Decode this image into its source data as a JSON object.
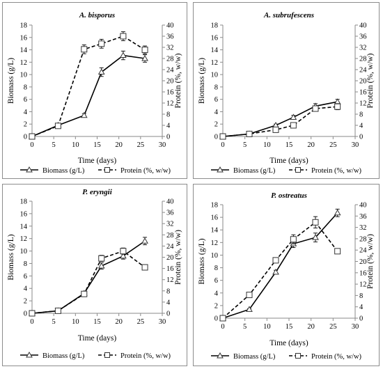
{
  "chart_data": [
    {
      "type": "line",
      "title": "A. bisporus",
      "xlabel": "Time (days)",
      "ylabel": "Biomass (g/L)",
      "y2label": "Protein (%, w/w)",
      "xlim": [
        0,
        30
      ],
      "xticks": [
        0,
        5,
        10,
        15,
        20,
        25,
        30
      ],
      "ylim": [
        0,
        18
      ],
      "yticks": [
        0,
        2,
        4,
        6,
        8,
        10,
        12,
        14,
        16,
        18
      ],
      "y2lim": [
        0,
        40
      ],
      "y2ticks": [
        0,
        4,
        8,
        12,
        16,
        20,
        24,
        28,
        32,
        36,
        40
      ],
      "grid": false,
      "legend_position": "bottom",
      "series": [
        {
          "name": "Biomass (g/L)",
          "axis": "left",
          "style": "solid",
          "marker": "triangle",
          "x": [
            0,
            6,
            12,
            16,
            21,
            26
          ],
          "y": [
            0,
            1.8,
            3.4,
            10.4,
            13.1,
            12.6
          ],
          "err": [
            0.1,
            0.2,
            0.3,
            0.7,
            0.7,
            0.6
          ]
        },
        {
          "name": "Protein (%,  w/w)",
          "axis": "right",
          "style": "dashed",
          "marker": "square",
          "x": [
            0,
            6,
            12,
            16,
            21,
            26
          ],
          "y": [
            0,
            3.8,
            31.3,
            33.3,
            36.0,
            31.1
          ],
          "err": [
            0.2,
            0.4,
            1.6,
            1.6,
            1.6,
            1.4
          ]
        }
      ]
    },
    {
      "type": "line",
      "title": "A. subrufescens",
      "xlabel": "Time (days)",
      "ylabel": "Biomass (g/L)",
      "y2label": "Protein (%, w/w)",
      "xlim": [
        0,
        30
      ],
      "xticks": [
        0,
        5,
        10,
        15,
        20,
        25,
        30
      ],
      "ylim": [
        0,
        18
      ],
      "yticks": [
        0,
        2,
        4,
        6,
        8,
        10,
        12,
        14,
        16,
        18
      ],
      "y2lim": [
        0,
        40
      ],
      "y2ticks": [
        0,
        4,
        8,
        12,
        16,
        20,
        24,
        28,
        32,
        36,
        40
      ],
      "grid": false,
      "legend_position": "bottom",
      "series": [
        {
          "name": "Biomass (g/L)",
          "axis": "left",
          "style": "solid",
          "marker": "triangle",
          "x": [
            0,
            6,
            12,
            16,
            21,
            26
          ],
          "y": [
            0,
            0.4,
            1.8,
            3.1,
            4.9,
            5.6
          ],
          "err": [
            0.1,
            0.1,
            0.2,
            0.3,
            0.4,
            0.4
          ]
        },
        {
          "name": "Protein (%,  w/w)",
          "axis": "right",
          "style": "dashed",
          "marker": "square",
          "x": [
            0,
            6,
            12,
            16,
            21,
            26
          ],
          "y": [
            0,
            0.9,
            2.4,
            4.0,
            10.0,
            10.7
          ],
          "err": [
            0.2,
            0.3,
            0.4,
            0.5,
            0.9,
            1.1
          ]
        }
      ]
    },
    {
      "type": "line",
      "title": "P. eryngii",
      "xlabel": "Time (days)",
      "ylabel": "Biomass (g/L)",
      "y2label": "Protein (%, w/w)",
      "xlim": [
        0,
        30
      ],
      "xticks": [
        0,
        5,
        10,
        15,
        20,
        25,
        30
      ],
      "ylim": [
        0,
        18
      ],
      "yticks": [
        0,
        2,
        4,
        6,
        8,
        10,
        12,
        14,
        16,
        18
      ],
      "y2lim": [
        0,
        40
      ],
      "y2ticks": [
        0,
        4,
        8,
        12,
        16,
        20,
        24,
        28,
        32,
        36,
        40
      ],
      "grid": false,
      "legend_position": "bottom",
      "series": [
        {
          "name": "Biomass (g/L)",
          "axis": "left",
          "style": "solid",
          "marker": "triangle",
          "x": [
            0,
            6,
            12,
            16,
            21,
            26
          ],
          "y": [
            0,
            0.4,
            3.2,
            7.6,
            9.2,
            11.6
          ],
          "err": [
            0.1,
            0.1,
            0.2,
            0.5,
            0.5,
            0.6
          ]
        },
        {
          "name": "Protein (%,  w/w)",
          "axis": "right",
          "style": "dashed",
          "marker": "square",
          "x": [
            0,
            6,
            12,
            16,
            21,
            26
          ],
          "y": [
            0,
            0.9,
            6.9,
            19.6,
            22.2,
            16.4
          ],
          "err": [
            0.2,
            0.2,
            0.4,
            1.1,
            1.1,
            0.5
          ]
        }
      ]
    },
    {
      "type": "line",
      "title": "P. ostreatus",
      "xlabel": "Time (days)",
      "ylabel": "Biomass (g/L)",
      "y2label": "Protein (%, w/w)",
      "xlim": [
        0,
        30
      ],
      "xticks": [
        0,
        5,
        10,
        15,
        20,
        25,
        30
      ],
      "ylim": [
        0,
        18
      ],
      "yticks": [
        0,
        2,
        4,
        6,
        8,
        10,
        12,
        14,
        16,
        18
      ],
      "y2lim": [
        0,
        40
      ],
      "y2ticks": [
        0,
        4,
        8,
        12,
        16,
        20,
        24,
        28,
        32,
        36,
        40
      ],
      "grid": false,
      "legend_position": "bottom",
      "series": [
        {
          "name": "Biomass (g/L)",
          "axis": "left",
          "style": "solid",
          "marker": "triangle",
          "x": [
            0,
            6,
            12,
            16,
            21,
            26
          ],
          "y": [
            0,
            1.4,
            7.3,
            11.8,
            12.8,
            16.7
          ],
          "err": [
            0.1,
            0.1,
            0.3,
            0.6,
            0.7,
            0.6
          ]
        },
        {
          "name": "Protein (%,  w/w)",
          "axis": "right",
          "style": "dashed",
          "marker": "square",
          "x": [
            0,
            6,
            12,
            16,
            21,
            26
          ],
          "y": [
            0,
            8.2,
            20.4,
            27.8,
            33.8,
            23.6
          ],
          "err": [
            0.2,
            0.5,
            0.9,
            1.6,
            2.0,
            0.6
          ]
        }
      ]
    }
  ]
}
